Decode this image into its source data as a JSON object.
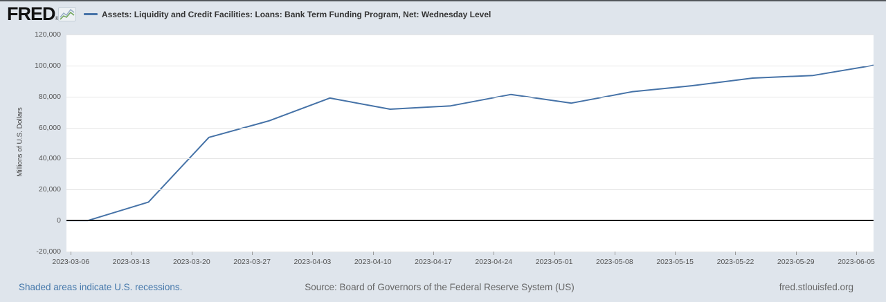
{
  "header": {
    "logo_text": "FRED",
    "logo_registered": "®",
    "legend_label": "Assets: Liquidity and Credit Facilities: Loans: Bank Term Funding Program, Net: Wednesday Level"
  },
  "icons": {
    "fred_graph_icon": "zigzag-line-chart"
  },
  "footer": {
    "recessions_note": "Shaded areas indicate U.S. recessions.",
    "source": "Source: Board of Governors of the Federal Reserve System (US)",
    "site": "fred.stlouisfed.org"
  },
  "colors": {
    "background": "#dfe5ec",
    "plot_background": "#ffffff",
    "gridline": "#e6e6e6",
    "zero_line": "#000000",
    "series_line": "#4572a7",
    "tick_text": "#555555",
    "link_blue": "#4477aa",
    "footer_gray": "#666666"
  },
  "chart_data": {
    "type": "line",
    "title": "Assets: Liquidity and Credit Facilities: Loans: Bank Term Funding Program, Net: Wednesday Level",
    "xlabel": "",
    "ylabel": "Millions of U.S. Dollars",
    "grid": true,
    "legend_position": "top",
    "ylim": [
      -20000,
      120000
    ],
    "ytick_interval": 20000,
    "x_range": [
      "2023-03-05",
      "2023-06-07"
    ],
    "x_tick_labels": [
      "2023-03-06",
      "2023-03-13",
      "2023-03-20",
      "2023-03-27",
      "2023-04-03",
      "2023-04-10",
      "2023-04-17",
      "2023-04-24",
      "2023-05-01",
      "2023-05-08",
      "2023-05-15",
      "2023-05-22",
      "2023-05-29",
      "2023-06-05"
    ],
    "series": [
      {
        "name": "Assets: Liquidity and Credit Facilities: Loans: Bank Term Funding Program, Net: Wednesday Level",
        "color": "#4572a7",
        "x": [
          "2023-03-08",
          "2023-03-15",
          "2023-03-22",
          "2023-03-29",
          "2023-04-05",
          "2023-04-12",
          "2023-04-19",
          "2023-04-26",
          "2023-05-03",
          "2023-05-10",
          "2023-05-17",
          "2023-05-24",
          "2023-05-31",
          "2023-06-07"
        ],
        "values": [
          0,
          11943,
          53669,
          64403,
          79021,
          71837,
          73982,
          81327,
          75778,
          83101,
          87006,
          91907,
          93615,
          100161
        ]
      }
    ]
  }
}
